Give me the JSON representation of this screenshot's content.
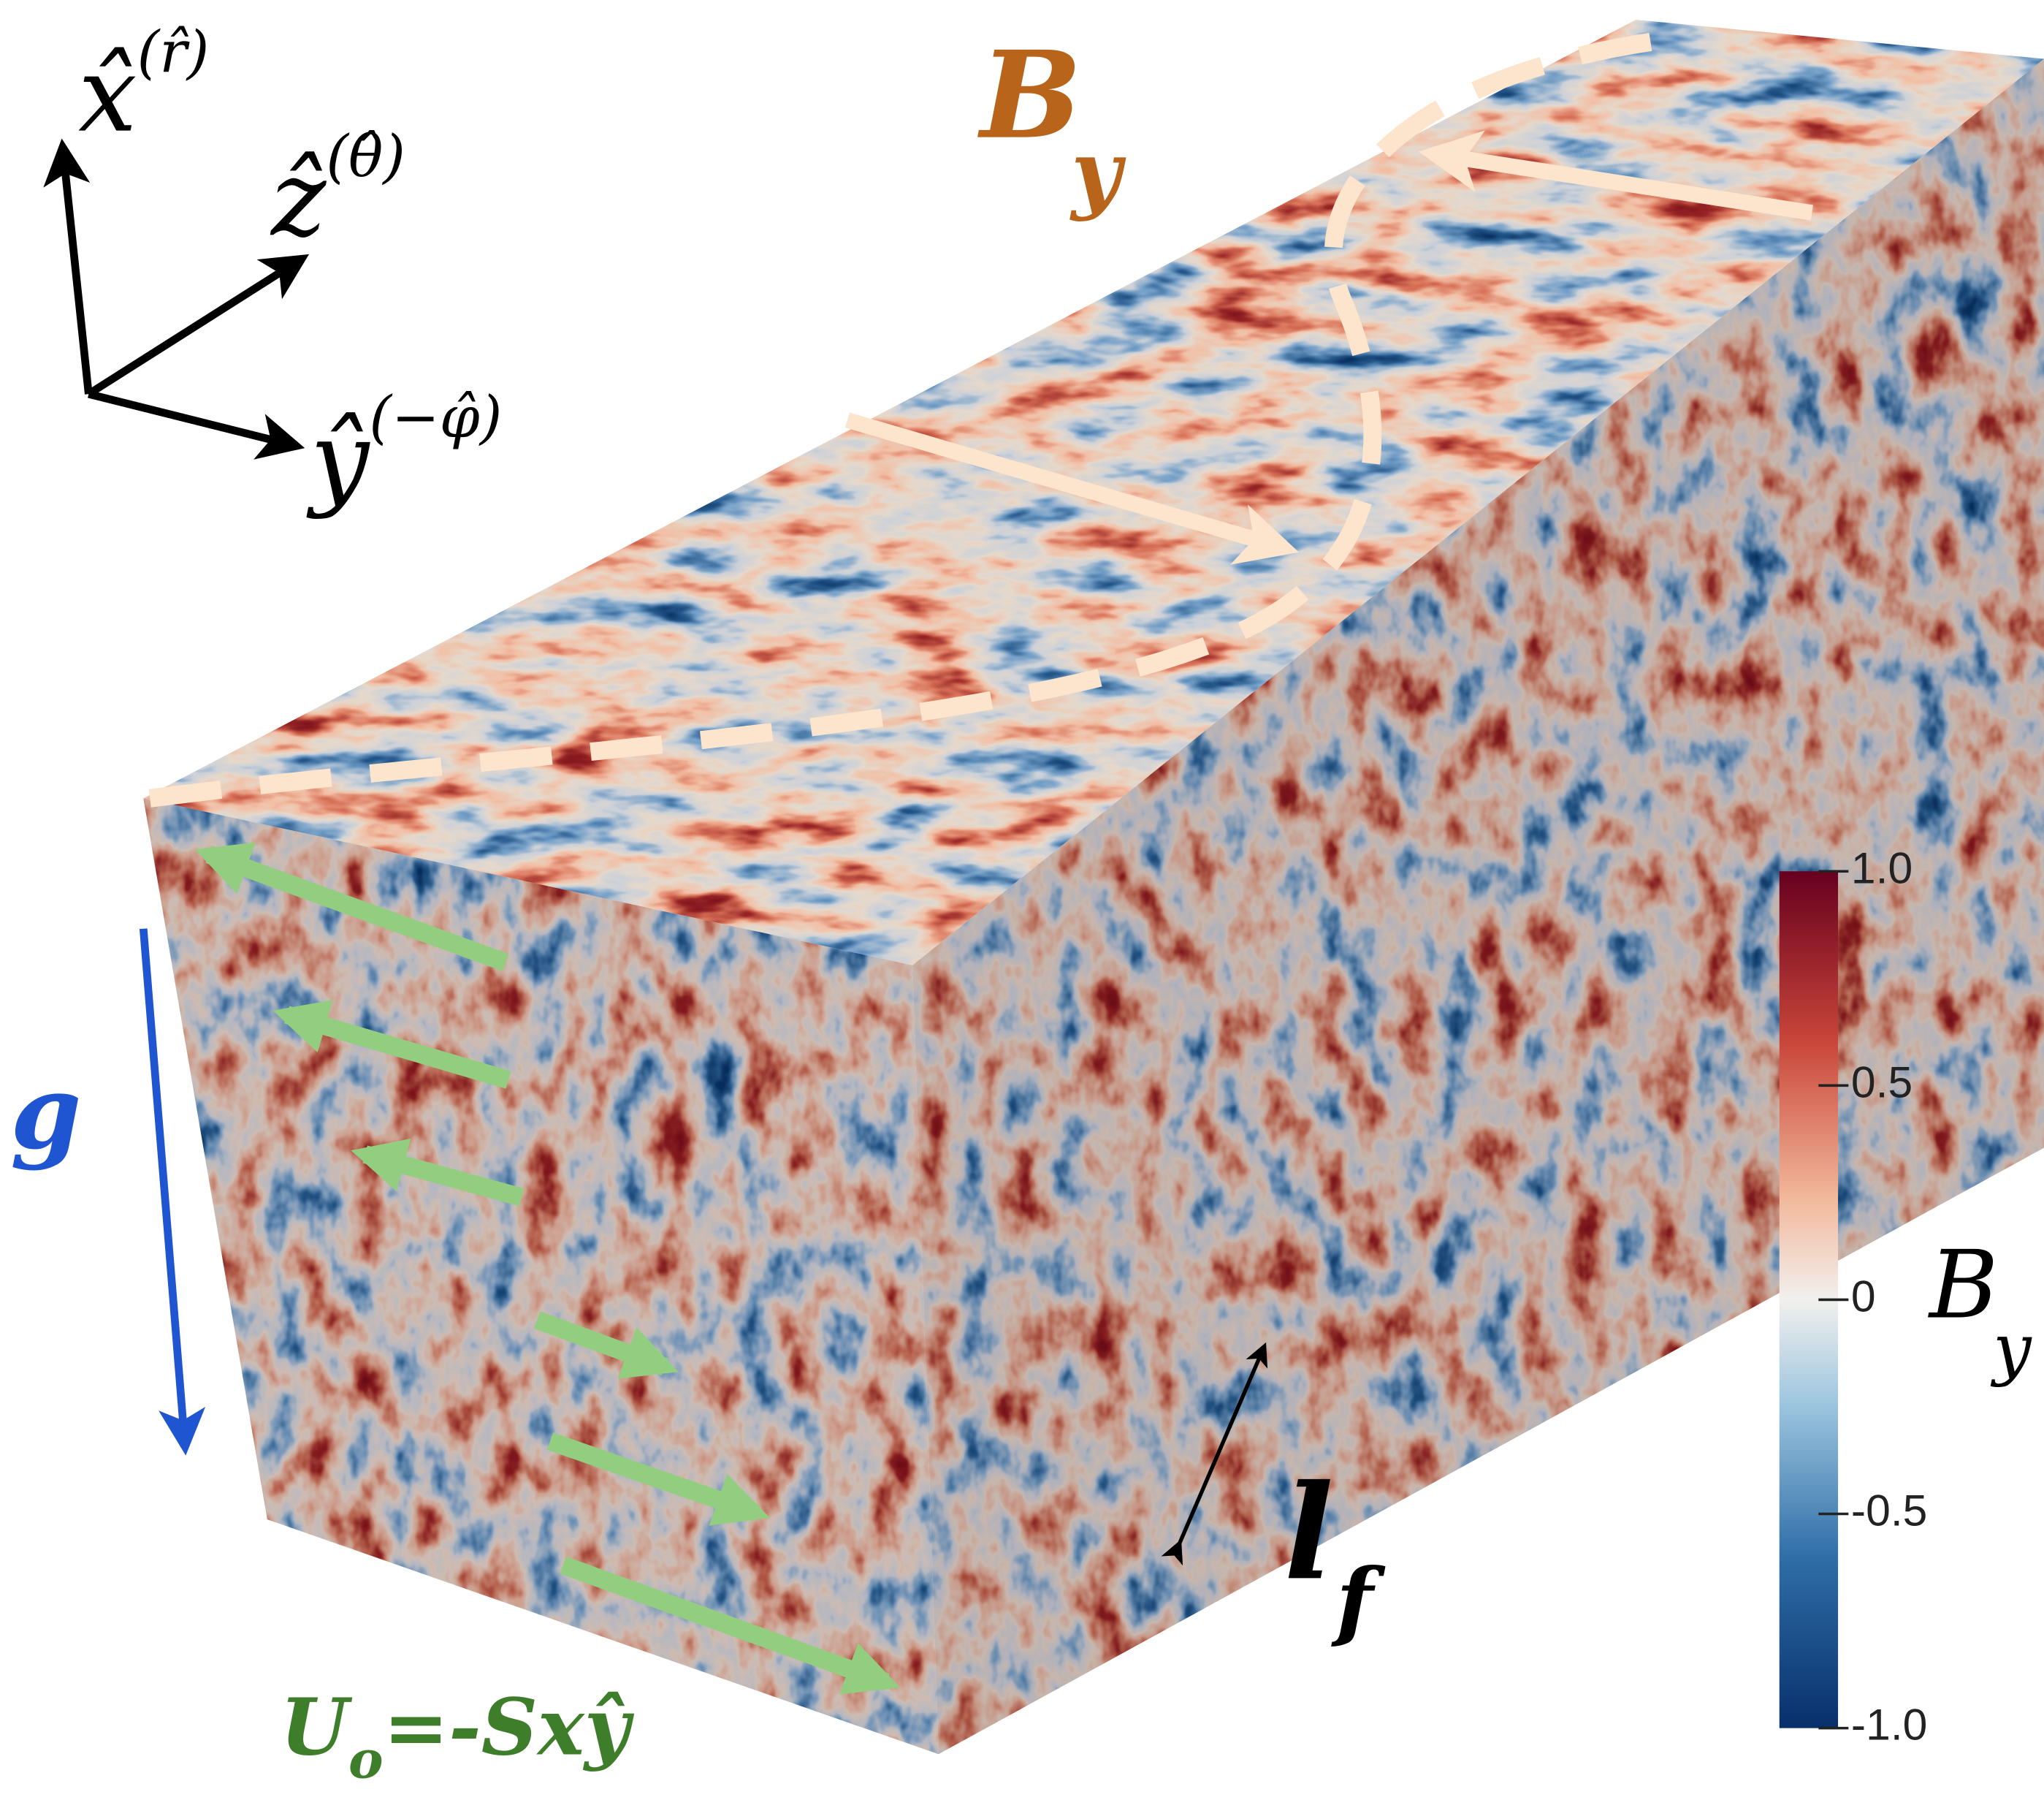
{
  "axes_triad": {
    "x_label": "x̂",
    "x_sup": "(r̂)",
    "z_label": "ẑ",
    "z_sup": "(θ̂)",
    "y_label": "ŷ",
    "y_sup": "(−φ̂)"
  },
  "top_label": {
    "base": "B",
    "sub": "y"
  },
  "gravity_label": "g",
  "forcing_scale": {
    "base": "l",
    "sub": "f"
  },
  "shear_flow": {
    "base": "U",
    "sub": "o",
    "rest": "=-Sxŷ"
  },
  "colorbar": {
    "title": {
      "base": "B",
      "sub": "y"
    },
    "range": [
      -1,
      1
    ],
    "ticks": [
      {
        "value": 1,
        "label": "1.0"
      },
      {
        "value": 0.5,
        "label": "0.5"
      },
      0,
      {
        "value": -0.5,
        "label": "-0.5"
      },
      {
        "value": -1,
        "label": "-1.0"
      }
    ]
  }
}
